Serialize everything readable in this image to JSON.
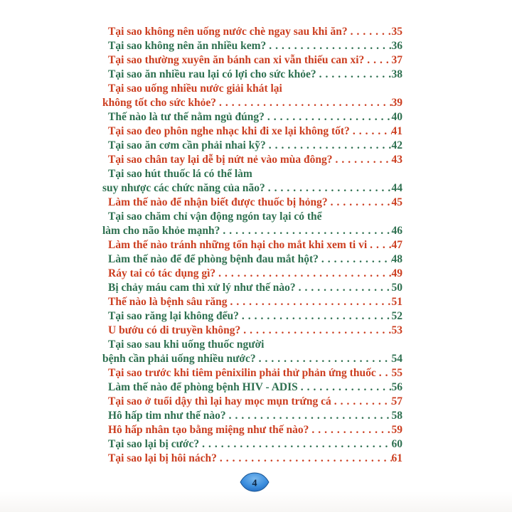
{
  "colors": {
    "red": "#cc3e20",
    "green": "#2e7050",
    "badge_light": "#7cb9ed",
    "badge_mid": "#3c8ede",
    "badge_dark": "#1e63b8",
    "badge_stroke": "#17528f",
    "badge_text": "#0d2440"
  },
  "footer": {
    "page_number": "4"
  },
  "toc": {
    "entries": [
      {
        "color": "red",
        "lines": [
          "Tại sao không nên uống nước chè ngay sau khi ăn?"
        ],
        "page": "35"
      },
      {
        "color": "green",
        "lines": [
          "Tại sao không nên ăn nhiều kem?"
        ],
        "page": "36"
      },
      {
        "color": "red",
        "lines": [
          "Tại sao thường xuyên ăn bánh can xi vẫn thiếu can xi?"
        ],
        "page": "37"
      },
      {
        "color": "green",
        "lines": [
          "Tại sao ăn nhiều rau lại có lợi cho sức khỏe?"
        ],
        "page": "38"
      },
      {
        "color": "red",
        "lines": [
          "Tại sao uống nhiều nước giải khát lại",
          "không tốt cho sức khỏe?"
        ],
        "page": "39"
      },
      {
        "color": "green",
        "lines": [
          "Thế nào là tư thế nằm ngủ đúng?"
        ],
        "page": "40"
      },
      {
        "color": "red",
        "lines": [
          "Tại sao đeo phôn nghe nhạc khi đi xe lại không tốt?"
        ],
        "page": "41"
      },
      {
        "color": "green",
        "lines": [
          "Tại sao ăn cơm cần phải nhai kỹ?"
        ],
        "page": "42"
      },
      {
        "color": "red",
        "lines": [
          "Tại sao chân tay lại dễ bị nứt nẻ vào mùa đông?"
        ],
        "page": "43"
      },
      {
        "color": "green",
        "lines": [
          "Tại sao hút thuốc lá có thể làm",
          "suy nhược các chức năng của não?"
        ],
        "page": "44"
      },
      {
        "color": "red",
        "lines": [
          "Làm thế nào để nhận biết được thuốc bị hỏng?"
        ],
        "page": "45"
      },
      {
        "color": "green",
        "lines": [
          "Tại sao chăm chỉ vận động ngón tay lại có thể",
          "làm cho não khỏe mạnh?"
        ],
        "page": "46"
      },
      {
        "color": "red",
        "lines": [
          "Làm thế nào tránh những tổn hại cho mắt khi xem ti vi"
        ],
        "page": "47"
      },
      {
        "color": "green",
        "lines": [
          "Làm thế nào để để phòng bệnh đau mắt hột?"
        ],
        "page": "48"
      },
      {
        "color": "red",
        "lines": [
          "Ráy tai có tác dụng gì?"
        ],
        "page": "49"
      },
      {
        "color": "green",
        "lines": [
          "Bị chảy máu cam thì xử lý như thế nào?"
        ],
        "page": "50"
      },
      {
        "color": "red",
        "lines": [
          "Thế nào là bệnh sâu răng"
        ],
        "page": "51"
      },
      {
        "color": "green",
        "lines": [
          "Tại sao răng lại không đểu?"
        ],
        "page": "52"
      },
      {
        "color": "red",
        "lines": [
          "U bướu có di truyền không?"
        ],
        "page": "53"
      },
      {
        "color": "green",
        "lines": [
          "Tại sao sau khi uống thuốc người",
          "bệnh cần phải uống nhiều nước?"
        ],
        "page": "54"
      },
      {
        "color": "red",
        "lines": [
          "Tại sao trước khi tiêm pênixilin phải thử phản ứng thuốc"
        ],
        "page": "55"
      },
      {
        "color": "green",
        "lines": [
          "Làm thế nào để phòng bệnh HIV - ADIS"
        ],
        "page": "56"
      },
      {
        "color": "red",
        "lines": [
          "Tại sao ở tuổi dậy thì lại hay mọc mụn trứng cá"
        ],
        "page": "57"
      },
      {
        "color": "green",
        "lines": [
          "Hô hấp tim như thế nào?"
        ],
        "page": "58"
      },
      {
        "color": "red",
        "lines": [
          "Hô hấp nhân tạo bằng miệng như thế nào?"
        ],
        "page": "59"
      },
      {
        "color": "green",
        "lines": [
          "Tại sao lại bị cước?"
        ],
        "page": "60"
      },
      {
        "color": "red",
        "lines": [
          "Tại sao lại bị hôi nách?"
        ],
        "page": "61"
      }
    ]
  }
}
